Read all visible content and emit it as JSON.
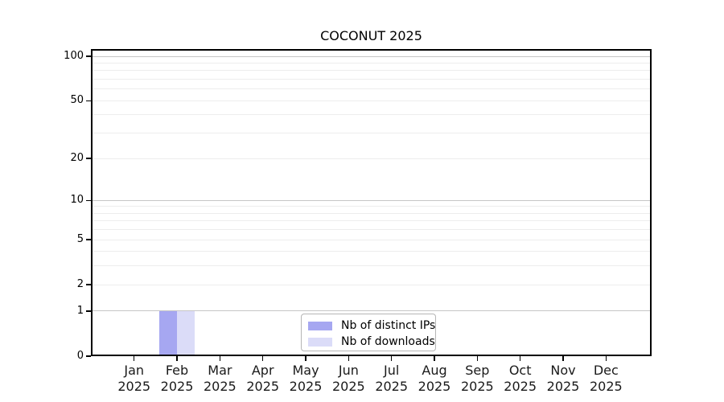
{
  "title": "COCONUT 2025",
  "chart_data": {
    "type": "bar",
    "title": "COCONUT 2025",
    "categories": [
      "Jan 2025",
      "Feb 2025",
      "Mar 2025",
      "Apr 2025",
      "May 2025",
      "Jun 2025",
      "Jul 2025",
      "Aug 2025",
      "Sep 2025",
      "Oct 2025",
      "Nov 2025",
      "Dec 2025"
    ],
    "series": [
      {
        "name": "Nb of distinct IPs",
        "color": "#a6a7f1",
        "values": [
          0,
          1,
          0,
          0,
          0,
          0,
          0,
          0,
          0,
          0,
          0,
          0
        ]
      },
      {
        "name": "Nb of downloads",
        "color": "#dbdcf8",
        "values": [
          0,
          1,
          0,
          0,
          0,
          0,
          0,
          0,
          0,
          0,
          0,
          0
        ]
      }
    ],
    "xlabel": "",
    "ylabel": "",
    "yscale": "log1p",
    "ylim": [
      0,
      112
    ],
    "yticks": [
      0,
      1,
      2,
      5,
      10,
      20,
      50,
      100
    ],
    "major_gridlines": [
      1,
      10,
      100
    ],
    "minor_gridlines": [
      2,
      3,
      4,
      5,
      6,
      7,
      8,
      9,
      20,
      30,
      40,
      50,
      60,
      70,
      80,
      90
    ],
    "grid": "horizontal",
    "legend_position": "inside-bottom-center"
  },
  "colors": {
    "background": "#ffffff",
    "axis": "#000000",
    "major_grid": "#c6c6c6",
    "minor_grid": "#ededed",
    "legend_border": "#b5b5b5",
    "bar_distinct_ips": "#a6a7f1",
    "bar_downloads": "#dbdcf8"
  }
}
